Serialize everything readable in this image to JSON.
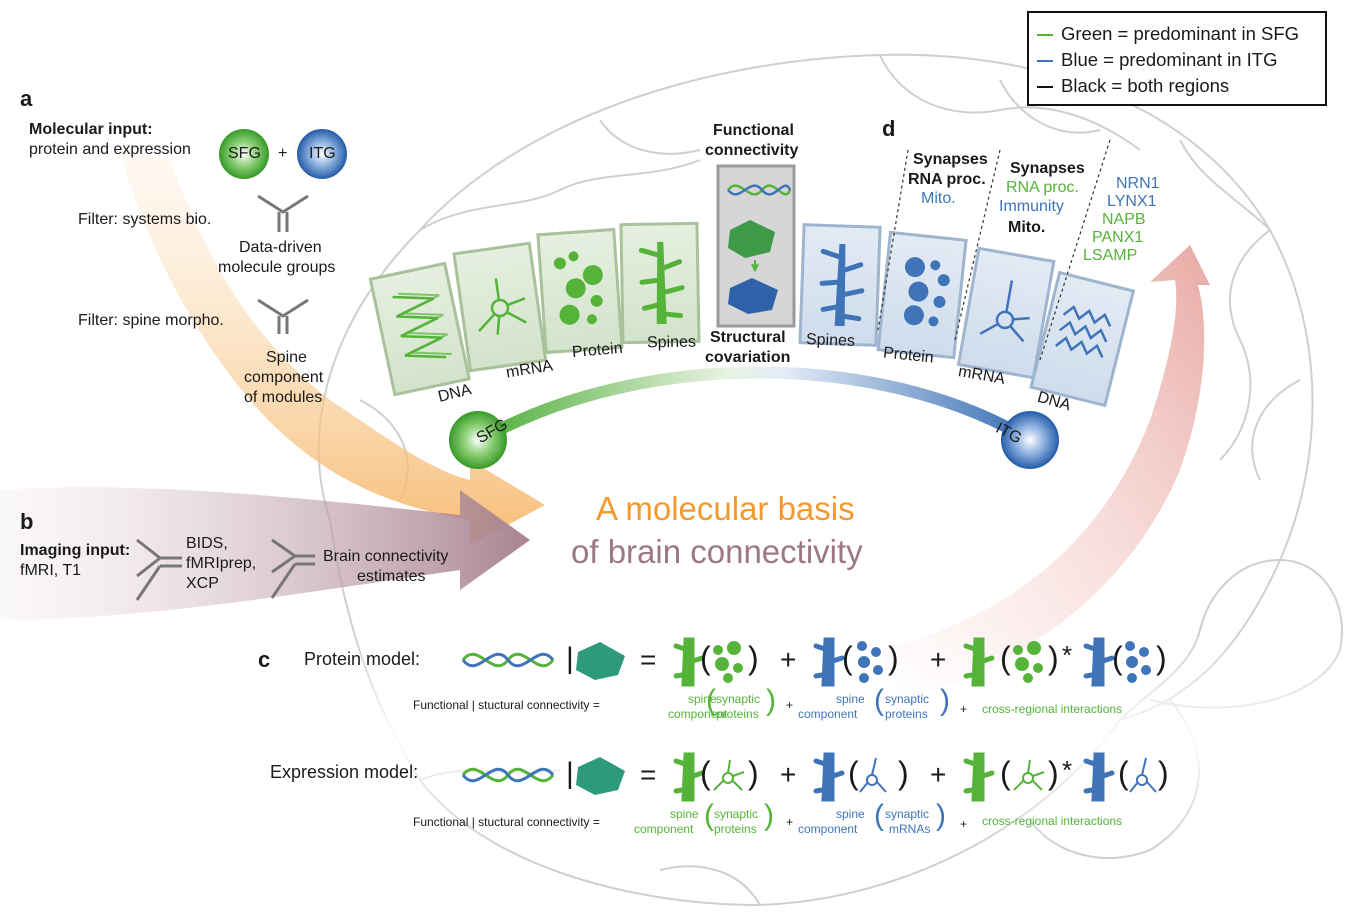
{
  "legend": {
    "green": "Green = predominant in SFG",
    "blue": "Blue = predominant in ITG",
    "black": "Black = both regions",
    "colors": {
      "green": "#56b33a",
      "blue": "#3f75b8",
      "black": "#111111"
    }
  },
  "panel_a": {
    "letter": "a",
    "input_bold": "Molecular input:",
    "input_sub": "protein and expression",
    "sfg": "SFG",
    "plus": "+",
    "itg": "ITG",
    "filter1": "Filter: systems bio.",
    "groups_line1": "Data-driven",
    "groups_line2": "molecule groups",
    "filter2": "Filter: spine morpho.",
    "spine_line1": "Spine",
    "spine_line2": "component",
    "spine_line3": "of modules"
  },
  "panel_b": {
    "letter": "b",
    "input_bold": "Imaging input:",
    "input_sub": "fMRI, T1",
    "tools_line1": "BIDS,",
    "tools_line2": "fMRIprep,",
    "tools_line3": "XCP",
    "est_line1": "Brain connectivity",
    "est_line2": "estimates"
  },
  "center": {
    "fc_line1": "Functional",
    "fc_line2": "connectivity",
    "sc_line1": "Structural",
    "sc_line2": "covariation",
    "cards_left": [
      "DNA",
      "mRNA",
      "Protein",
      "Spines"
    ],
    "cards_right": [
      "Spines",
      "Protein",
      "mRNA",
      "DNA"
    ],
    "sfg": "SFG",
    "itg": "ITG",
    "title_line1": "A molecular basis",
    "title_line2": "of brain connectivity"
  },
  "panel_d": {
    "letter": "d",
    "col1_line1": "Synapses",
    "col1_line2": "RNA proc.",
    "col1_line3": "Mito.",
    "col2_line1": "Synapses",
    "col2_line2": "RNA proc.",
    "col2_line3": "Immunity",
    "col2_line4": "Mito.",
    "genes": [
      {
        "name": "NRN1",
        "color": "blue"
      },
      {
        "name": "LYNX1",
        "color": "blue"
      },
      {
        "name": "NAPB",
        "color": "green"
      },
      {
        "name": "PANX1",
        "color": "green"
      },
      {
        "name": "LSAMP",
        "color": "green"
      }
    ]
  },
  "panel_c": {
    "letter": "c",
    "protein_model": "Protein model:",
    "expression_model": "Expression model:",
    "bar": "|",
    "equals": "=",
    "plus": "+",
    "times": "*",
    "lhs": "Functional | stuctural connectivity =",
    "spine_line1": "spine",
    "spine_line2": "component",
    "syn_protein_line1": "synaptic",
    "syn_protein_line2": "proteins",
    "syn_mrna_line1": "synaptic",
    "syn_mrna_line2": "mRNAs",
    "small_plus": "+",
    "cross": "cross-regional interactions"
  }
}
